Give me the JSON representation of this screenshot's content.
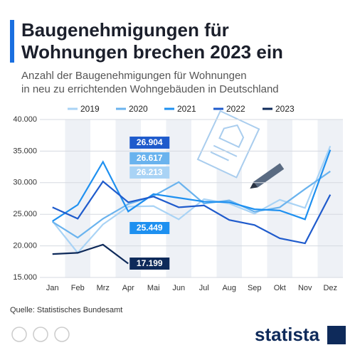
{
  "chart_data": {
    "type": "line",
    "title": "Baugenehmigungen für Wohnungen brechen 2023 ein",
    "title_lines": [
      "Baugenehmigungen für",
      "Wohnungen brechen 2023 ein"
    ],
    "subtitle_lines": [
      "Anzahl der Baugenehmigungen für Wohnungen",
      "in neu zu errichtenden Wohngebäuden in Deutschland"
    ],
    "categories": [
      "Jan",
      "Feb",
      "Mrz",
      "Apr",
      "Mai",
      "Jun",
      "Jul",
      "Aug",
      "Sep",
      "Okt",
      "Nov",
      "Dez"
    ],
    "series": [
      {
        "name": "2019",
        "color": "#a9d3f5",
        "values": [
          23900,
          18900,
          23400,
          26213,
          26300,
          24200,
          27400,
          26700,
          25100,
          27300,
          26000,
          35800
        ],
        "value_labels": [
          null,
          null,
          null,
          "26.213",
          null,
          null,
          null,
          null,
          null,
          null,
          null,
          null
        ]
      },
      {
        "name": "2020",
        "color": "#6ab3ee",
        "values": [
          23800,
          21300,
          24300,
          26617,
          27900,
          30100,
          26700,
          27200,
          25400,
          26100,
          29000,
          31800
        ],
        "value_labels": [
          null,
          null,
          null,
          "26.617",
          null,
          null,
          null,
          null,
          null,
          null,
          null,
          null
        ]
      },
      {
        "name": "2021",
        "color": "#1e90f0",
        "values": [
          23900,
          26500,
          33300,
          25449,
          28200,
          27600,
          27000,
          26900,
          25800,
          25600,
          24200,
          35200
        ],
        "value_labels": [
          null,
          null,
          null,
          "25.449",
          null,
          null,
          null,
          null,
          null,
          null,
          null,
          null
        ]
      },
      {
        "name": "2022",
        "color": "#1f5bcc",
        "values": [
          26100,
          24300,
          30200,
          26904,
          27800,
          26100,
          26400,
          24100,
          23300,
          21200,
          20400,
          28100
        ],
        "value_labels": [
          null,
          null,
          null,
          "26.904",
          null,
          null,
          null,
          null,
          null,
          null,
          null,
          null
        ]
      },
      {
        "name": "2023",
        "color": "#0e2a5a",
        "values": [
          18700,
          18900,
          20200,
          17199,
          null,
          null,
          null,
          null,
          null,
          null,
          null,
          null
        ],
        "value_labels": [
          null,
          null,
          null,
          "17.199",
          null,
          null,
          null,
          null,
          null,
          null,
          null,
          null
        ]
      }
    ],
    "ylim": [
      15000,
      40000
    ],
    "yticks": [
      {
        "value": 15000,
        "label": "15.000"
      },
      {
        "value": 20000,
        "label": "20.000"
      },
      {
        "value": 25000,
        "label": "25.000"
      },
      {
        "value": 30000,
        "label": "30.000"
      },
      {
        "value": 35000,
        "label": "35.000"
      },
      {
        "value": 40000,
        "label": "40.000"
      }
    ],
    "grid": true,
    "legend": "top",
    "source": "Quelle: Statistisches Bundesamt",
    "brand": "statista"
  }
}
